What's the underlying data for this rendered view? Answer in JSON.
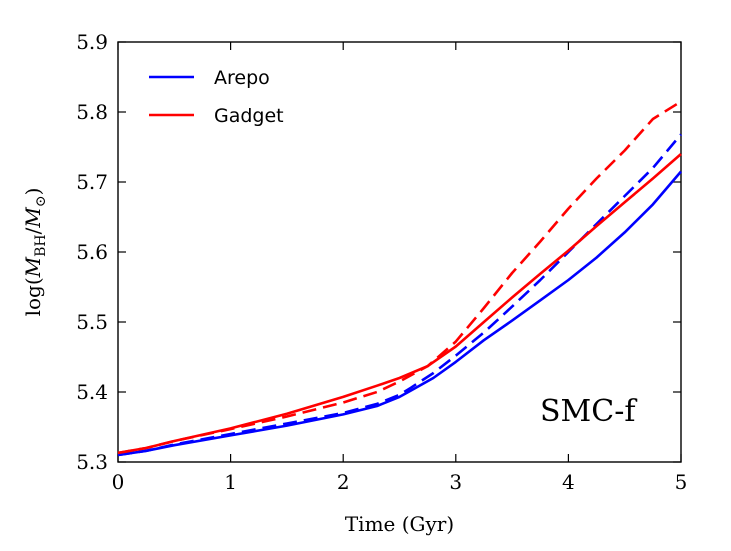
{
  "chart_data": {
    "type": "line",
    "title": "",
    "xlabel": "Time (Gyr)",
    "ylabel_parts": {
      "prefix": "log(",
      "m1": "M",
      "sub": "BH",
      "slash": "/",
      "m2": "M",
      "sun": "⊙",
      "suffix": ")"
    },
    "xlim": [
      0,
      5
    ],
    "ylim": [
      5.3,
      5.9
    ],
    "xticks": [
      0,
      1,
      2,
      3,
      4,
      5
    ],
    "xtick_labels": [
      "0",
      "1",
      "2",
      "3",
      "4",
      "5"
    ],
    "yticks": [
      5.3,
      5.4,
      5.5,
      5.6,
      5.7,
      5.8,
      5.9
    ],
    "ytick_labels": [
      "5.3",
      "5.4",
      "5.5",
      "5.6",
      "5.7",
      "5.8",
      "5.9"
    ],
    "annotation": "SMC-f",
    "legend": {
      "placement": "top-left",
      "entries": [
        {
          "label": "Arepo",
          "color": "#0000ff"
        },
        {
          "label": "Gadget",
          "color": "#ff0000"
        }
      ]
    },
    "series": [
      {
        "name": "Arepo-solid",
        "code": "Arepo",
        "style": "solid",
        "color": "#0000ff",
        "x": [
          0,
          0.25,
          0.5,
          1.0,
          1.5,
          2.0,
          2.3,
          2.5,
          2.6,
          2.8,
          3.0,
          3.25,
          3.5,
          3.75,
          4.0,
          4.25,
          4.5,
          4.75,
          5.0
        ],
        "y": [
          5.31,
          5.316,
          5.324,
          5.338,
          5.352,
          5.368,
          5.38,
          5.393,
          5.402,
          5.42,
          5.443,
          5.474,
          5.502,
          5.531,
          5.56,
          5.592,
          5.628,
          5.668,
          5.715
        ]
      },
      {
        "name": "Arepo-dashed",
        "code": "Arepo",
        "style": "dashed",
        "color": "#0000ff",
        "x": [
          0,
          0.25,
          0.5,
          1.0,
          1.5,
          2.0,
          2.3,
          2.5,
          2.6,
          2.8,
          3.0,
          3.25,
          3.5,
          3.75,
          4.0,
          4.25,
          4.5,
          4.75,
          5.0
        ],
        "y": [
          5.31,
          5.316,
          5.325,
          5.34,
          5.355,
          5.37,
          5.383,
          5.396,
          5.406,
          5.427,
          5.452,
          5.485,
          5.522,
          5.56,
          5.6,
          5.64,
          5.68,
          5.72,
          5.768
        ]
      },
      {
        "name": "Gadget-solid",
        "code": "Gadget",
        "style": "solid",
        "color": "#ff0000",
        "x": [
          0,
          0.25,
          0.5,
          1.0,
          1.5,
          2.0,
          2.3,
          2.5,
          2.75,
          3.0,
          3.25,
          3.5,
          3.75,
          4.0,
          4.25,
          4.5,
          4.75,
          5.0
        ],
        "y": [
          5.313,
          5.32,
          5.33,
          5.348,
          5.369,
          5.393,
          5.409,
          5.42,
          5.437,
          5.465,
          5.5,
          5.535,
          5.569,
          5.602,
          5.637,
          5.671,
          5.705,
          5.74
        ]
      },
      {
        "name": "Gadget-dashed",
        "code": "Gadget",
        "style": "dashed",
        "color": "#ff0000",
        "x": [
          0,
          0.25,
          0.5,
          1.0,
          1.5,
          2.0,
          2.3,
          2.5,
          2.75,
          3.0,
          3.25,
          3.5,
          3.75,
          4.0,
          4.25,
          4.5,
          4.75,
          5.0
        ],
        "y": [
          5.313,
          5.32,
          5.33,
          5.347,
          5.365,
          5.385,
          5.4,
          5.415,
          5.437,
          5.472,
          5.52,
          5.57,
          5.615,
          5.662,
          5.705,
          5.745,
          5.79,
          5.815
        ]
      }
    ]
  }
}
